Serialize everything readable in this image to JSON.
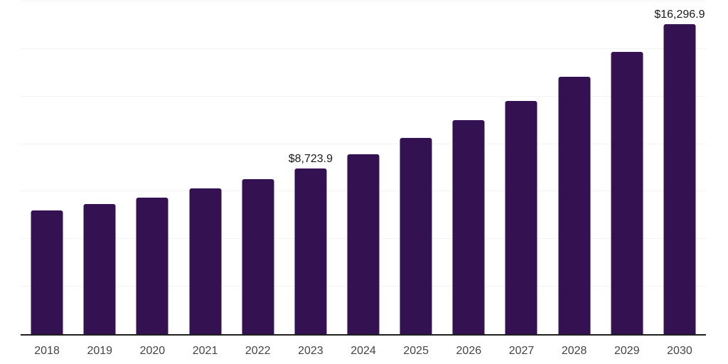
{
  "chart_data": {
    "type": "bar",
    "title": "",
    "xlabel": "",
    "ylabel": "",
    "categories": [
      "2018",
      "2019",
      "2020",
      "2021",
      "2022",
      "2023",
      "2024",
      "2025",
      "2026",
      "2027",
      "2028",
      "2029",
      "2030"
    ],
    "values": [
      6500,
      6830,
      7190,
      7660,
      8160,
      8723.9,
      9470,
      10310,
      11240,
      12270,
      13550,
      14860,
      16296.9
    ],
    "data_labels": [
      "",
      "",
      "",
      "",
      "",
      "$8,723.9",
      "",
      "",
      "",
      "",
      "",
      "",
      "$16,296.9"
    ],
    "ylim": [
      0,
      17500
    ],
    "gridline_interval": 2500,
    "grid": "horizontal",
    "y_tick_labels_shown": false,
    "legend_position": "none",
    "colors": {
      "bar": "#341150",
      "axis_line": "#1f1f1f",
      "gridline": "#f3f3f3",
      "x_tick_label": "#444444",
      "data_label": "#1a1a1a",
      "background": "#ffffff"
    }
  }
}
